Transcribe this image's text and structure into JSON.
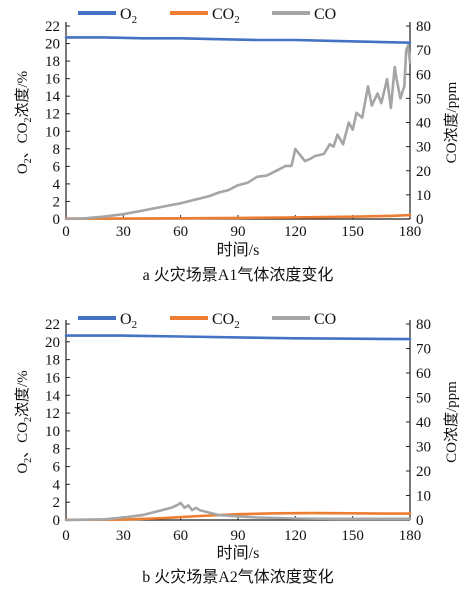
{
  "chart_data": [
    {
      "type": "line",
      "caption": "a 火灾场景A1气体浓度变化",
      "xlabel": "时间/s",
      "ylabel_left_parts": [
        "O",
        "2",
        "、CO",
        "2",
        "浓度/%"
      ],
      "ylabel_right": "CO浓度/ppm",
      "xlim": [
        0,
        180
      ],
      "xticks": [
        0,
        30,
        60,
        90,
        120,
        150,
        180
      ],
      "ylim_left": [
        0,
        22
      ],
      "yticks_left": [
        2,
        4,
        6,
        8,
        10,
        12,
        14,
        16,
        18,
        20,
        22
      ],
      "ylim_right": [
        0,
        80
      ],
      "yticks_right": [
        0,
        10,
        20,
        30,
        40,
        50,
        60,
        70,
        80
      ],
      "legend": [
        {
          "base": "O",
          "sub": "2",
          "color": "#4472c4"
        },
        {
          "base": "CO",
          "sub": "2",
          "color": "#ed7d31"
        },
        {
          "base": "CO",
          "sub": "",
          "color": "#a5a5a5"
        }
      ],
      "series": [
        {
          "name": "O2",
          "axis": "left",
          "color": "#4472c4",
          "x": [
            0,
            20,
            40,
            60,
            80,
            100,
            120,
            140,
            160,
            180
          ],
          "y": [
            20.7,
            20.7,
            20.6,
            20.6,
            20.5,
            20.4,
            20.4,
            20.3,
            20.2,
            20.1
          ]
        },
        {
          "name": "CO2",
          "axis": "left",
          "color": "#ed7d31",
          "x": [
            0,
            30,
            60,
            90,
            120,
            150,
            170,
            180
          ],
          "y": [
            0.04,
            0.05,
            0.08,
            0.12,
            0.18,
            0.26,
            0.35,
            0.45
          ]
        },
        {
          "name": "CO",
          "axis": "right",
          "color": "#a5a5a5",
          "x": [
            0,
            10,
            20,
            30,
            40,
            50,
            60,
            65,
            70,
            75,
            80,
            85,
            90,
            95,
            100,
            105,
            110,
            115,
            118,
            120,
            125,
            128,
            130,
            135,
            138,
            140,
            142,
            145,
            148,
            150,
            152,
            155,
            158,
            160,
            163,
            165,
            168,
            170,
            172,
            173,
            175,
            177,
            178,
            179,
            180
          ],
          "y": [
            0,
            0.3,
            1,
            2,
            3.5,
            5,
            6.5,
            7.5,
            8.5,
            9.5,
            11,
            12,
            14,
            15,
            17.5,
            18,
            20,
            22,
            22,
            29,
            24,
            25,
            26,
            27,
            31,
            30,
            35,
            31,
            40,
            37,
            44,
            42,
            55,
            47,
            52,
            48,
            58,
            46,
            63,
            58,
            50,
            55,
            70,
            72,
            65
          ]
        }
      ]
    },
    {
      "type": "line",
      "caption": "b 火灾场景A2气体浓度变化",
      "xlabel": "时间/s",
      "ylabel_left_parts": [
        "O",
        "2",
        "、CO",
        "2",
        "浓度/%"
      ],
      "ylabel_right": "CO浓度/ppm",
      "xlim": [
        0,
        180
      ],
      "xticks": [
        0,
        30,
        60,
        90,
        120,
        150,
        180
      ],
      "ylim_left": [
        0,
        22
      ],
      "yticks_left": [
        2,
        4,
        6,
        8,
        10,
        12,
        14,
        16,
        18,
        20,
        22
      ],
      "ylim_right": [
        0,
        80
      ],
      "yticks_right": [
        0,
        10,
        20,
        30,
        40,
        50,
        60,
        70,
        80
      ],
      "legend": [
        {
          "base": "O",
          "sub": "2",
          "color": "#4472c4"
        },
        {
          "base": "CO",
          "sub": "2",
          "color": "#ed7d31"
        },
        {
          "base": "CO",
          "sub": "",
          "color": "#a5a5a5"
        }
      ],
      "series": [
        {
          "name": "O2",
          "axis": "left",
          "color": "#4472c4",
          "x": [
            0,
            30,
            60,
            90,
            120,
            150,
            180
          ],
          "y": [
            20.7,
            20.7,
            20.6,
            20.5,
            20.4,
            20.35,
            20.3
          ]
        },
        {
          "name": "CO2",
          "axis": "left",
          "color": "#ed7d31",
          "x": [
            0,
            30,
            50,
            70,
            90,
            110,
            130,
            150,
            170,
            180
          ],
          "y": [
            0.02,
            0.05,
            0.2,
            0.45,
            0.65,
            0.75,
            0.78,
            0.75,
            0.72,
            0.72
          ]
        },
        {
          "name": "CO",
          "axis": "right",
          "color": "#a5a5a5",
          "x": [
            0,
            20,
            30,
            40,
            50,
            55,
            58,
            60,
            62,
            64,
            66,
            68,
            70,
            75,
            80,
            90,
            100,
            110,
            120,
            140,
            160,
            180
          ],
          "y": [
            0,
            0.3,
            1,
            2,
            4,
            5,
            6,
            7,
            5,
            6,
            4,
            5,
            4,
            3,
            2,
            1.5,
            1,
            0.8,
            0.6,
            0.5,
            0.5,
            0.5
          ]
        }
      ]
    }
  ]
}
